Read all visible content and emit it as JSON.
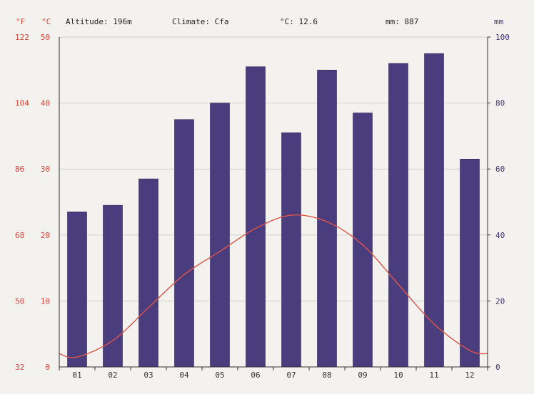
{
  "header": {
    "unit_f": "°F",
    "unit_c": "°C",
    "unit_mm": "mm",
    "altitude": "Altitude: 196m",
    "climate": "Climate: Cfa",
    "avg_temp": "°C: 12.6",
    "precip": "mm: 887"
  },
  "chart_data": {
    "type": "bar",
    "categories": [
      "01",
      "02",
      "03",
      "04",
      "05",
      "06",
      "07",
      "08",
      "09",
      "10",
      "11",
      "12"
    ],
    "series": [
      {
        "type": "bar",
        "axis": "right",
        "unit": "mm",
        "values": [
          47,
          49,
          57,
          75,
          80,
          91,
          71,
          90,
          77,
          92,
          95,
          63
        ],
        "color": "#4a3d7e"
      },
      {
        "type": "line",
        "axis": "left",
        "unit": "°C",
        "values": [
          1.5,
          4.0,
          9.0,
          14.0,
          17.5,
          21.0,
          23.0,
          22.0,
          18.5,
          12.5,
          6.5,
          2.5
        ],
        "color": "#e0544a"
      }
    ],
    "y_left_c": {
      "ticks": [
        "50",
        "40",
        "30",
        "20",
        "10",
        "0"
      ],
      "ylim": [
        0,
        50
      ]
    },
    "y_left_f": {
      "ticks": [
        "122",
        "104",
        "86",
        "68",
        "50",
        "32"
      ]
    },
    "y_right_mm": {
      "ticks": [
        "100",
        "80",
        "60",
        "40",
        "20",
        "0"
      ],
      "ylim": [
        0,
        100
      ]
    },
    "grid": true
  }
}
